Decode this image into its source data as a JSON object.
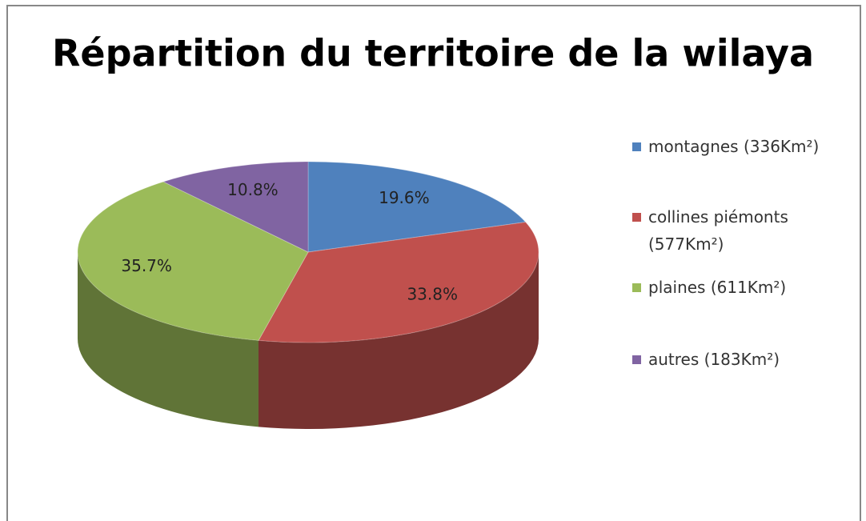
{
  "chart_data": {
    "type": "pie",
    "title": "Répartition du territoire de la wilaya",
    "categories": [
      "montagnes (336Km²)",
      "collines piémonts (577Km²)",
      "plaines (611Km²)",
      "autres (183Km²)"
    ],
    "values": [
      19.6,
      33.8,
      35.7,
      10.8
    ],
    "value_labels": [
      "19.6%",
      "33.8%",
      "35.7%",
      "10.8%"
    ],
    "colors": [
      "#4f81bd",
      "#c0504d",
      "#9bbb59",
      "#8064a2"
    ],
    "legend": "right"
  }
}
